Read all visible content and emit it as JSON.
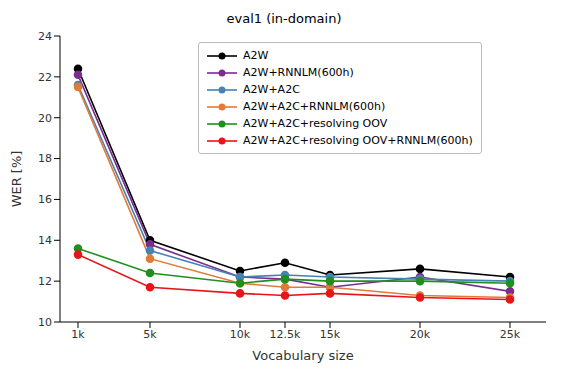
{
  "chart_data": {
    "type": "line",
    "title": "eval1 (in-domain)",
    "x_label": "Vocabulary size",
    "y_label": "WER [%]",
    "x": [
      1,
      5,
      10,
      12.5,
      15,
      20,
      25
    ],
    "xlim": [
      0,
      27
    ],
    "xticks": [
      {
        "value": 1,
        "label": "1k"
      },
      {
        "value": 5,
        "label": "5k"
      },
      {
        "value": 10,
        "label": "10k"
      },
      {
        "value": 12.5,
        "label": "12.5k"
      },
      {
        "value": 15,
        "label": "15k"
      },
      {
        "value": 20,
        "label": "20k"
      },
      {
        "value": 25,
        "label": "25k"
      }
    ],
    "ylim": [
      10,
      24
    ],
    "yticks": [
      10,
      12,
      14,
      16,
      18,
      20,
      22,
      24
    ],
    "grid": false,
    "legend": "upper center",
    "marker": "circle",
    "series": [
      {
        "name": "A2W",
        "color": "#000000",
        "values": [
          22.4,
          14.0,
          12.5,
          12.9,
          12.3,
          12.6,
          12.2
        ]
      },
      {
        "name": "A2W+RNNLM(600h)",
        "color": "#7b2d8e",
        "values": [
          22.1,
          13.8,
          12.2,
          12.1,
          11.7,
          12.2,
          11.5
        ]
      },
      {
        "name": "A2W+A2C",
        "color": "#4682b4",
        "values": [
          21.6,
          13.5,
          12.2,
          12.3,
          12.2,
          12.1,
          12.0
        ]
      },
      {
        "name": "A2W+A2C+RNNLM(600h)",
        "color": "#e07b39",
        "values": [
          21.5,
          13.1,
          11.9,
          11.7,
          11.7,
          11.3,
          11.2
        ]
      },
      {
        "name": "A2W+A2C+resolving OOV",
        "color": "#1f8f1f",
        "values": [
          13.6,
          12.4,
          11.9,
          12.1,
          12.0,
          12.0,
          11.9
        ]
      },
      {
        "name": "A2W+A2C+resolving OOV+RNNLM(600h)",
        "color": "#e8141a",
        "values": [
          13.3,
          11.7,
          11.4,
          11.3,
          11.4,
          11.2,
          11.1
        ]
      }
    ]
  }
}
